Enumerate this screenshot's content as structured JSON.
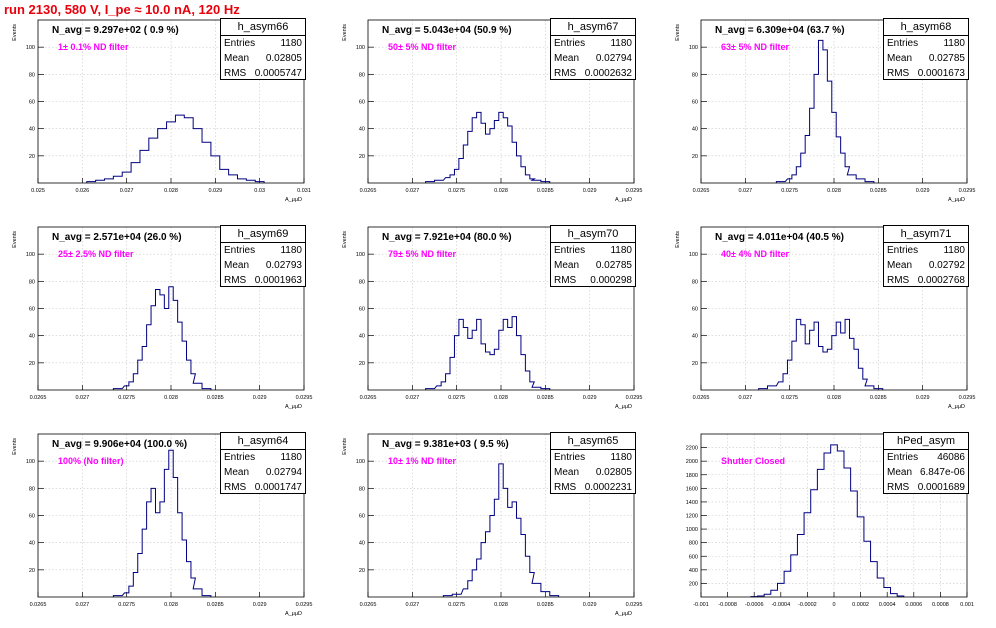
{
  "title": "run 2130,   580 V, I_pe ≈ 10.0 nA, 120 Hz",
  "chart_data": [
    {
      "type": "histogram",
      "name": "h_asym66",
      "stats": {
        "entries": "1180",
        "mean": "0.02805",
        "rms": "0.0005747"
      },
      "navg_label": "N_avg = 9.297e+02 ( 0.9 %)",
      "filter_label": "1± 0.1% ND filter",
      "xlabel": "A_μμD",
      "ylabel": "Events",
      "xlim": [
        0.025,
        0.031
      ],
      "ylim": [
        0,
        120
      ],
      "xticks": [
        "0.025",
        "0.026",
        "0.027",
        "0.028",
        "0.029",
        "0.03",
        "0.031"
      ],
      "yticks": [
        "20",
        "40",
        "60",
        "80",
        "100"
      ],
      "x_centers": [
        0.0262,
        0.0264,
        0.0266,
        0.0268,
        0.027,
        0.0272,
        0.0274,
        0.0276,
        0.0278,
        0.028,
        0.0282,
        0.0284,
        0.0286,
        0.0288,
        0.029,
        0.0292,
        0.0294,
        0.0296,
        0.0298,
        0.03
      ],
      "values": [
        1,
        2,
        3,
        5,
        8,
        15,
        24,
        33,
        40,
        45,
        50,
        48,
        40,
        30,
        20,
        10,
        6,
        3,
        2,
        1
      ]
    },
    {
      "type": "histogram",
      "name": "h_asym67",
      "stats": {
        "entries": "1180",
        "mean": "0.02794",
        "rms": "0.0002632"
      },
      "navg_label": "N_avg = 5.043e+04 (50.9 %)",
      "filter_label": "50± 5% ND filter",
      "xlabel": "A_μμD",
      "ylabel": "Events",
      "xlim": [
        0.0265,
        0.0295
      ],
      "ylim": [
        0,
        120
      ],
      "xticks": [
        "0.0265",
        "0.027",
        "0.0275",
        "0.028",
        "0.0285",
        "0.029",
        "0.0295"
      ],
      "yticks": [
        "20",
        "40",
        "60",
        "80",
        "100"
      ],
      "x_centers": [
        0.0272,
        0.0273,
        0.0274,
        0.02745,
        0.0275,
        0.02755,
        0.0276,
        0.02765,
        0.0277,
        0.02775,
        0.0278,
        0.02785,
        0.0279,
        0.02795,
        0.028,
        0.02805,
        0.0281,
        0.02815,
        0.0282,
        0.02825,
        0.0283,
        0.02835,
        0.0284,
        0.0285
      ],
      "values": [
        1,
        2,
        4,
        6,
        10,
        18,
        28,
        38,
        48,
        52,
        44,
        36,
        40,
        46,
        52,
        48,
        42,
        30,
        20,
        12,
        6,
        3,
        2,
        1
      ]
    },
    {
      "type": "histogram",
      "name": "h_asym68",
      "stats": {
        "entries": "1180",
        "mean": "0.02785",
        "rms": "0.0001673"
      },
      "navg_label": "N_avg = 6.309e+04 (63.7 %)",
      "filter_label": "63± 5% ND filter",
      "xlabel": "A_μμD",
      "ylabel": "Events",
      "xlim": [
        0.0265,
        0.0295
      ],
      "ylim": [
        0,
        120
      ],
      "xticks": [
        "0.0265",
        "0.027",
        "0.0275",
        "0.028",
        "0.0285",
        "0.029",
        "0.0295"
      ],
      "yticks": [
        "20",
        "40",
        "60",
        "80",
        "100"
      ],
      "x_centers": [
        0.0274,
        0.0275,
        0.02755,
        0.0276,
        0.02765,
        0.0277,
        0.02775,
        0.0278,
        0.02785,
        0.0279,
        0.02795,
        0.028,
        0.02805,
        0.0281,
        0.02815,
        0.0282,
        0.0283,
        0.0284
      ],
      "values": [
        1,
        3,
        6,
        12,
        22,
        35,
        55,
        80,
        105,
        98,
        75,
        52,
        34,
        22,
        12,
        6,
        3,
        1
      ]
    },
    {
      "type": "histogram",
      "name": "h_asym69",
      "stats": {
        "entries": "1180",
        "mean": "0.02793",
        "rms": "0.0001963"
      },
      "navg_label": "N_avg = 2.571e+04 (26.0 %)",
      "filter_label": "25± 2.5% ND filter",
      "xlabel": "A_μμD",
      "ylabel": "Events",
      "xlim": [
        0.0265,
        0.0295
      ],
      "ylim": [
        0,
        120
      ],
      "xticks": [
        "0.0265",
        "0.027",
        "0.0275",
        "0.028",
        "0.0285",
        "0.029",
        "0.0295"
      ],
      "yticks": [
        "20",
        "40",
        "60",
        "80",
        "100"
      ],
      "x_centers": [
        0.0274,
        0.0275,
        0.02755,
        0.0276,
        0.02765,
        0.0277,
        0.02775,
        0.0278,
        0.02785,
        0.0279,
        0.02795,
        0.028,
        0.02805,
        0.0281,
        0.02815,
        0.0282,
        0.02825,
        0.0283,
        0.0284
      ],
      "values": [
        1,
        3,
        6,
        12,
        22,
        32,
        48,
        62,
        74,
        70,
        60,
        76,
        66,
        50,
        36,
        22,
        12,
        5,
        1
      ]
    },
    {
      "type": "histogram",
      "name": "h_asym70",
      "stats": {
        "entries": "1180",
        "mean": "0.02785",
        "rms": "0.000298"
      },
      "navg_label": "N_avg = 7.921e+04 (80.0 %)",
      "filter_label": "79± 5% ND filter",
      "xlabel": "A_μμD",
      "ylabel": "Events",
      "xlim": [
        0.0265,
        0.0295
      ],
      "ylim": [
        0,
        120
      ],
      "xticks": [
        "0.0265",
        "0.027",
        "0.0275",
        "0.028",
        "0.0285",
        "0.029",
        "0.0295"
      ],
      "yticks": [
        "20",
        "40",
        "60",
        "80",
        "100"
      ],
      "x_centers": [
        0.0272,
        0.0273,
        0.02735,
        0.0274,
        0.02745,
        0.0275,
        0.02755,
        0.0276,
        0.02765,
        0.0277,
        0.02775,
        0.0278,
        0.02785,
        0.0279,
        0.02795,
        0.028,
        0.02805,
        0.0281,
        0.02815,
        0.0282,
        0.02825,
        0.0283,
        0.02835,
        0.0284,
        0.0285
      ],
      "values": [
        1,
        3,
        6,
        12,
        24,
        40,
        52,
        46,
        38,
        44,
        52,
        34,
        28,
        26,
        30,
        44,
        52,
        46,
        54,
        40,
        26,
        14,
        6,
        2,
        1
      ]
    },
    {
      "type": "histogram",
      "name": "h_asym71",
      "stats": {
        "entries": "1180",
        "mean": "0.02792",
        "rms": "0.0002768"
      },
      "navg_label": "N_avg = 4.011e+04 (40.5 %)",
      "filter_label": "40± 4% ND filter",
      "xlabel": "A_μμD",
      "ylabel": "Events",
      "xlim": [
        0.0265,
        0.0295
      ],
      "ylim": [
        0,
        120
      ],
      "xticks": [
        "0.0265",
        "0.027",
        "0.0275",
        "0.028",
        "0.0285",
        "0.029",
        "0.0295"
      ],
      "yticks": [
        "20",
        "40",
        "60",
        "80",
        "100"
      ],
      "x_centers": [
        0.0272,
        0.0273,
        0.0274,
        0.02745,
        0.0275,
        0.02755,
        0.0276,
        0.02765,
        0.0277,
        0.02775,
        0.0278,
        0.02785,
        0.0279,
        0.02795,
        0.028,
        0.02805,
        0.0281,
        0.02815,
        0.0282,
        0.02825,
        0.0283,
        0.02835,
        0.0284,
        0.0285
      ],
      "values": [
        1,
        3,
        6,
        12,
        22,
        36,
        52,
        48,
        34,
        44,
        50,
        32,
        28,
        30,
        40,
        50,
        42,
        52,
        38,
        30,
        16,
        8,
        3,
        1
      ]
    },
    {
      "type": "histogram",
      "name": "h_asym64",
      "stats": {
        "entries": "1180",
        "mean": "0.02794",
        "rms": "0.0001747"
      },
      "navg_label": "N_avg = 9.906e+04 (100.0 %)",
      "filter_label": "100% (No filter)",
      "xlabel": "A_μμD",
      "ylabel": "Events",
      "xlim": [
        0.0265,
        0.0295
      ],
      "ylim": [
        0,
        120
      ],
      "xticks": [
        "0.0265",
        "0.027",
        "0.0275",
        "0.028",
        "0.0285",
        "0.029",
        "0.0295"
      ],
      "yticks": [
        "20",
        "40",
        "60",
        "80",
        "100"
      ],
      "x_centers": [
        0.0274,
        0.0275,
        0.02755,
        0.0276,
        0.02765,
        0.0277,
        0.02775,
        0.0278,
        0.02785,
        0.0279,
        0.02795,
        0.028,
        0.02805,
        0.0281,
        0.02815,
        0.0282,
        0.02825,
        0.0283,
        0.0284
      ],
      "values": [
        1,
        3,
        8,
        18,
        32,
        50,
        70,
        80,
        62,
        70,
        94,
        108,
        88,
        62,
        42,
        26,
        14,
        6,
        1
      ]
    },
    {
      "type": "histogram",
      "name": "h_asym65",
      "stats": {
        "entries": "1180",
        "mean": "0.02805",
        "rms": "0.0002231"
      },
      "navg_label": "N_avg = 9.381e+03 ( 9.5 %)",
      "filter_label": "10± 1% ND filter",
      "xlabel": "A_μμD",
      "ylabel": "Events",
      "xlim": [
        0.0265,
        0.0295
      ],
      "ylim": [
        0,
        120
      ],
      "xticks": [
        "0.0265",
        "0.027",
        "0.0275",
        "0.028",
        "0.0285",
        "0.029",
        "0.0295"
      ],
      "yticks": [
        "20",
        "40",
        "60",
        "80",
        "100"
      ],
      "x_centers": [
        0.0274,
        0.0275,
        0.0276,
        0.02765,
        0.0277,
        0.02775,
        0.0278,
        0.02785,
        0.0279,
        0.02795,
        0.028,
        0.02805,
        0.0281,
        0.02815,
        0.0282,
        0.02825,
        0.0283,
        0.02835,
        0.0284,
        0.0285,
        0.0286
      ],
      "values": [
        1,
        2,
        6,
        12,
        20,
        28,
        40,
        48,
        60,
        72,
        98,
        80,
        66,
        70,
        58,
        46,
        30,
        18,
        10,
        4,
        1
      ]
    },
    {
      "type": "histogram",
      "name": "hPed_asym",
      "stats": {
        "entries": "46086",
        "mean": "6.847e-06",
        "rms": "0.0001689"
      },
      "navg_label": "",
      "filter_label": "Shutter Closed",
      "xlabel": "",
      "ylabel": "",
      "xlim": [
        -0.001,
        0.001
      ],
      "ylim": [
        0,
        2400
      ],
      "xticks": [
        "-0.001",
        "-0.0008",
        "-0.0006",
        "-0.0004",
        "-0.0002",
        "0",
        "0.0002",
        "0.0004",
        "0.0006",
        "0.0008",
        "0.001"
      ],
      "yticks": [
        "200",
        "400",
        "600",
        "800",
        "1000",
        "1200",
        "1400",
        "1600",
        "1800",
        "2000",
        "2200"
      ],
      "x_centers": [
        -0.0006,
        -0.00055,
        -0.0005,
        -0.00045,
        -0.0004,
        -0.00035,
        -0.0003,
        -0.00025,
        -0.0002,
        -0.00015,
        -0.0001,
        -5e-05,
        0.0,
        5e-05,
        0.0001,
        0.00015,
        0.0002,
        0.00025,
        0.0003,
        0.00035,
        0.0004,
        0.00045,
        0.0005
      ],
      "values": [
        5,
        15,
        40,
        100,
        200,
        380,
        620,
        920,
        1240,
        1580,
        1880,
        2120,
        2240,
        2150,
        1900,
        1560,
        1180,
        820,
        520,
        280,
        140,
        50,
        15
      ]
    }
  ]
}
